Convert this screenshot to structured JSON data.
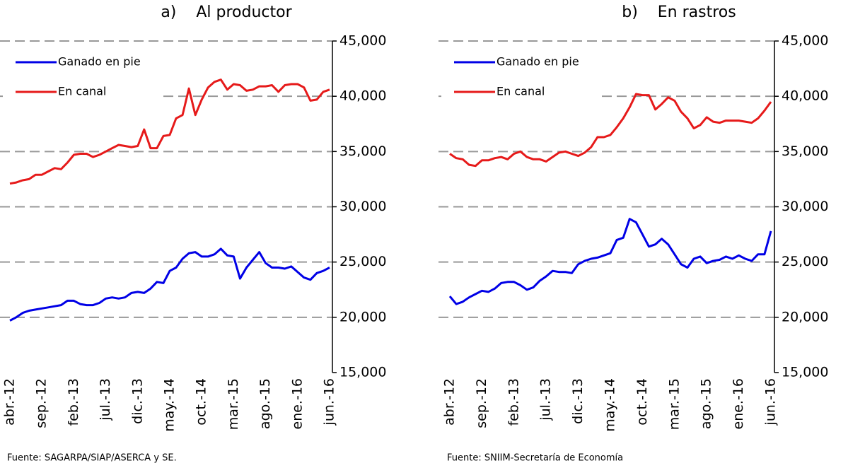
{
  "chart_data": [
    {
      "type": "line",
      "title": "a)    Al productor",
      "source": "Fuente: SAGARPA/SIAP/ASERCA y SE.",
      "categories": [
        "abr.-12",
        null,
        null,
        null,
        null,
        "sep.-12",
        null,
        null,
        null,
        null,
        "feb.-13",
        null,
        null,
        null,
        null,
        "jul.-13",
        null,
        null,
        null,
        null,
        "dic.-13",
        null,
        null,
        null,
        null,
        "may.-14",
        null,
        null,
        null,
        null,
        "oct.-14",
        null,
        null,
        null,
        null,
        "mar.-15",
        null,
        null,
        null,
        null,
        "ago.-15",
        null,
        null,
        null,
        null,
        "ene.-16",
        null,
        null,
        null,
        null,
        "jun.-16"
      ],
      "series": [
        {
          "name": "Ganado en pie",
          "color": "#0000e6",
          "values": [
            19700,
            20000,
            20400,
            20600,
            20700,
            20800,
            20900,
            21000,
            21100,
            21500,
            21500,
            21200,
            21100,
            21100,
            21300,
            21700,
            21800,
            21700,
            21800,
            22200,
            22300,
            22200,
            22600,
            23200,
            23100,
            24200,
            24500,
            25300,
            25800,
            25900,
            25500,
            25500,
            25700,
            26200,
            25600,
            25500,
            23500,
            24500,
            25200,
            25900,
            24900,
            24500,
            24500,
            24400,
            24600,
            24100,
            23600,
            23400,
            24000,
            24200,
            24500
          ]
        },
        {
          "name": "En canal",
          "color": "#e61a1a",
          "values": [
            32100,
            32200,
            32400,
            32500,
            32900,
            32900,
            33200,
            33500,
            33400,
            34000,
            34700,
            34800,
            34800,
            34500,
            34700,
            35000,
            35300,
            35600,
            35500,
            35400,
            35500,
            37000,
            35300,
            35300,
            36400,
            36500,
            38000,
            38300,
            40700,
            38300,
            39700,
            40800,
            41300,
            41500,
            40600,
            41100,
            41000,
            40500,
            40600,
            40900,
            40900,
            41000,
            40400,
            41000,
            41100,
            41100,
            40800,
            39600,
            39700,
            40400,
            40600
          ]
        }
      ],
      "ylim": [
        15000,
        45000
      ],
      "yticks": [
        {
          "value": 15000,
          "label": "15,000"
        },
        {
          "value": 20000,
          "label": "20,000"
        },
        {
          "value": 25000,
          "label": "25,000"
        },
        {
          "value": 30000,
          "label": "30,000"
        },
        {
          "value": 35000,
          "label": "35,000"
        },
        {
          "value": 40000,
          "label": "40,000"
        },
        {
          "value": 45000,
          "label": "45,000"
        }
      ],
      "grid": true,
      "legend": "upper left"
    },
    {
      "type": "line",
      "title": "b)    En rastros",
      "source": "Fuente: SNIIM-Secretaría de Economía",
      "categories": [
        "abr.-12",
        null,
        null,
        null,
        null,
        "sep.-12",
        null,
        null,
        null,
        null,
        "feb.-13",
        null,
        null,
        null,
        null,
        "jul.-13",
        null,
        null,
        null,
        null,
        "dic.-13",
        null,
        null,
        null,
        null,
        "may.-14",
        null,
        null,
        null,
        null,
        "oct.-14",
        null,
        null,
        null,
        null,
        "mar.-15",
        null,
        null,
        null,
        null,
        "ago.-15",
        null,
        null,
        null,
        null,
        "ene.-16",
        null,
        null,
        null,
        null,
        "jun.-16"
      ],
      "series": [
        {
          "name": "Ganado en pie",
          "color": "#0000e6",
          "values": [
            21900,
            21200,
            21400,
            21800,
            22100,
            22400,
            22300,
            22600,
            23100,
            23200,
            23200,
            22900,
            22500,
            22700,
            23300,
            23700,
            24200,
            24100,
            24100,
            24000,
            24800,
            25100,
            25300,
            25400,
            25600,
            25800,
            27000,
            27200,
            28900,
            28600,
            27500,
            26400,
            26600,
            27100,
            26600,
            25700,
            24800,
            24500,
            25300,
            25500,
            24900,
            25100,
            25200,
            25500,
            25300,
            25600,
            25300,
            25100,
            25700,
            25700,
            27800
          ]
        },
        {
          "name": "En canal",
          "color": "#e61a1a",
          "values": [
            34800,
            34400,
            34300,
            33800,
            33700,
            34200,
            34200,
            34400,
            34500,
            34300,
            34800,
            35000,
            34500,
            34300,
            34300,
            34100,
            34500,
            34900,
            35000,
            34800,
            34600,
            34900,
            35400,
            36300,
            36300,
            36500,
            37200,
            38000,
            39000,
            40200,
            40100,
            40100,
            38800,
            39300,
            39900,
            39600,
            38600,
            38000,
            37100,
            37400,
            38100,
            37700,
            37600,
            37800,
            37800,
            37800,
            37700,
            37600,
            38000,
            38700,
            39500
          ]
        }
      ],
      "ylim": [
        15000,
        45000
      ],
      "yticks": [
        {
          "value": 15000,
          "label": "15,000"
        },
        {
          "value": 20000,
          "label": "20,000"
        },
        {
          "value": 25000,
          "label": "25,000"
        },
        {
          "value": 30000,
          "label": "30,000"
        },
        {
          "value": 35000,
          "label": "35,000"
        },
        {
          "value": 40000,
          "label": "40,000"
        },
        {
          "value": 45000,
          "label": "45,000"
        }
      ],
      "grid": true,
      "legend": "upper left"
    }
  ]
}
